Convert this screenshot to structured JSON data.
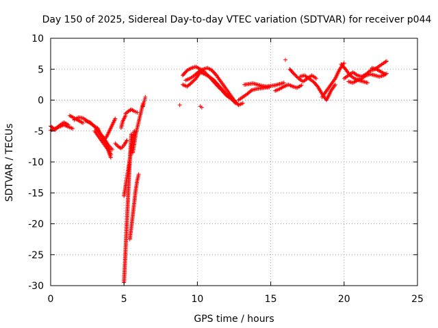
{
  "chart_data": {
    "type": "scatter",
    "title": "Day 150 of 2025, Sidereal Day-to-day VTEC variation (SDTVAR) for receiver p044",
    "xlabel": "GPS time / hours",
    "ylabel": "SDTVAR / TECUs",
    "xlim": [
      0,
      25
    ],
    "ylim": [
      -30,
      10
    ],
    "xticks": [
      0,
      5,
      10,
      15,
      20,
      25
    ],
    "yticks": [
      -30,
      -25,
      -20,
      -15,
      -10,
      -5,
      0,
      5,
      10
    ],
    "xtick_labels": [
      "0",
      "5",
      "10",
      "15",
      "20",
      "25"
    ],
    "ytick_labels": [
      "-30",
      "-25",
      "-20",
      "-15",
      "-10",
      "-5",
      "0",
      "5",
      "10"
    ],
    "grid": true,
    "marker": "+",
    "color": "#ff0000",
    "series": [
      {
        "name": "p044",
        "segments": [
          {
            "x": [
              0.0,
              0.3,
              0.6,
              0.9,
              1.2,
              1.5
            ],
            "y": [
              -4.9,
              -4.6,
              -4.3,
              -4.0,
              -4.3,
              -4.6
            ]
          },
          {
            "x": [
              0.0,
              0.3,
              0.6,
              0.9,
              1.2
            ],
            "y": [
              -4.2,
              -4.8,
              -4.1,
              -3.6,
              -4.0
            ]
          },
          {
            "x": [
              1.3,
              1.6,
              1.9,
              2.2
            ],
            "y": [
              -2.5,
              -2.9,
              -3.3,
              -3.7
            ]
          },
          {
            "x": [
              1.6,
              1.9,
              2.2,
              2.5,
              2.8,
              3.1
            ],
            "y": [
              -3.2,
              -2.8,
              -2.9,
              -3.4,
              -3.9,
              -4.4
            ]
          },
          {
            "x": [
              2.4,
              2.7,
              3.0,
              3.3,
              3.6,
              3.9,
              4.1
            ],
            "y": [
              -3.4,
              -3.6,
              -4.3,
              -5.2,
              -6.3,
              -7.5,
              -8.8
            ]
          },
          {
            "x": [
              3.0,
              3.3,
              3.6,
              3.9,
              4.1
            ],
            "y": [
              -5.0,
              -6.0,
              -7.0,
              -8.0,
              -9.3
            ]
          },
          {
            "x": [
              3.2,
              3.4,
              3.6,
              3.8,
              4.0,
              4.2
            ],
            "y": [
              -4.5,
              -5.5,
              -6.0,
              -6.8,
              -7.5,
              -8.0
            ]
          },
          {
            "x": [
              3.6,
              3.8,
              4.0,
              4.2,
              4.4
            ],
            "y": [
              -6.5,
              -6.0,
              -5.0,
              -4.0,
              -3.0
            ]
          },
          {
            "x": [
              4.4,
              4.6,
              4.8,
              5.0,
              5.2
            ],
            "y": [
              -7.0,
              -7.5,
              -7.8,
              -7.3,
              -6.5
            ]
          },
          {
            "x": [
              4.8,
              4.9,
              5.0,
              5.1
            ],
            "y": [
              -4.5,
              -3.5,
              -3.0,
              -2.5
            ]
          },
          {
            "x": [
              5.1,
              5.3,
              5.5,
              5.7,
              5.9
            ],
            "y": [
              -2.2,
              -1.8,
              -1.5,
              -1.8,
              -2.0
            ]
          },
          {
            "x": [
              5.0,
              5.1,
              5.2,
              5.3,
              5.4,
              5.5,
              5.6,
              5.7
            ],
            "y": [
              -15.5,
              -14.0,
              -12.5,
              -11.0,
              -9.5,
              -8.0,
              -6.5,
              -5.0
            ]
          },
          {
            "x": [
              5.0,
              5.05,
              5.1,
              5.15,
              5.2,
              5.25,
              5.3,
              5.35,
              5.4,
              5.45,
              5.5
            ],
            "y": [
              -29.5,
              -27.0,
              -24.5,
              -22.0,
              -19.5,
              -17.0,
              -14.5,
              -12.0,
              -9.5,
              -7.5,
              -5.5
            ]
          },
          {
            "x": [
              5.4,
              5.5,
              5.6,
              5.7,
              5.8,
              5.9,
              6.0
            ],
            "y": [
              -22.5,
              -20.5,
              -18.5,
              -16.5,
              -14.5,
              -13.0,
              -12.0
            ]
          },
          {
            "x": [
              5.6,
              5.7,
              5.8,
              5.9,
              6.0,
              6.1,
              6.2,
              6.3
            ],
            "y": [
              -8.5,
              -7.0,
              -5.5,
              -4.5,
              -3.5,
              -2.5,
              -1.5,
              -0.5
            ]
          },
          {
            "x": [
              6.3,
              6.35,
              6.4,
              6.45
            ],
            "y": [
              -1.0,
              -0.5,
              0.0,
              0.5
            ]
          },
          {
            "x": [
              8.8
            ],
            "y": [
              -0.8
            ]
          },
          {
            "x": [
              9.0,
              9.3,
              9.6,
              9.9,
              10.2,
              10.5,
              10.8,
              11.1,
              11.4,
              11.7,
              12.0,
              12.3,
              12.6
            ],
            "y": [
              4.0,
              4.8,
              5.2,
              5.4,
              5.0,
              4.5,
              3.8,
              3.0,
              2.2,
              1.5,
              0.7,
              0.2,
              -0.5
            ]
          },
          {
            "x": [
              9.0,
              9.3,
              9.6,
              9.9,
              10.2,
              10.5,
              10.8,
              11.1,
              11.4,
              11.7,
              12.0,
              12.3,
              12.6
            ],
            "y": [
              2.5,
              2.2,
              2.8,
              3.5,
              4.5,
              4.2,
              3.8,
              3.3,
              2.5,
              1.7,
              0.9,
              0.3,
              -0.3
            ]
          },
          {
            "x": [
              9.2,
              9.5,
              9.8,
              10.1,
              10.4,
              10.7,
              11.0,
              11.3,
              11.6,
              11.9,
              12.2,
              12.5,
              12.8,
              13.1
            ],
            "y": [
              3.2,
              3.5,
              4.0,
              4.6,
              5.0,
              5.2,
              4.8,
              4.0,
              3.0,
              2.0,
              1.0,
              0.0,
              -0.8,
              -0.5
            ]
          },
          {
            "x": [
              10.2,
              10.3
            ],
            "y": [
              -1.0,
              -1.2
            ]
          },
          {
            "x": [
              12.8,
              13.1,
              13.4,
              13.7,
              14.0,
              14.3,
              14.6,
              14.9
            ],
            "y": [
              0.0,
              0.5,
              1.0,
              1.6,
              1.8,
              1.9,
              2.0,
              2.1
            ]
          },
          {
            "x": [
              13.2,
              13.5,
              13.8,
              14.1,
              14.4,
              14.7,
              15.0,
              15.3,
              15.6,
              15.9
            ],
            "y": [
              2.5,
              2.6,
              2.7,
              2.5,
              2.3,
              2.2,
              2.3,
              2.4,
              2.6,
              2.8
            ]
          },
          {
            "x": [
              15.3,
              15.6,
              15.9,
              16.2,
              16.5,
              16.8,
              17.1
            ],
            "y": [
              1.5,
              1.8,
              2.2,
              2.5,
              2.2,
              2.0,
              2.4
            ]
          },
          {
            "x": [
              16.0
            ],
            "y": [
              6.5
            ]
          },
          {
            "x": [
              16.3,
              16.6,
              16.9,
              17.2,
              17.5,
              17.8,
              18.1
            ],
            "y": [
              5.0,
              4.2,
              3.5,
              3.0,
              3.5,
              4.0,
              3.5
            ]
          },
          {
            "x": [
              17.0,
              17.3,
              17.6,
              17.9,
              18.2,
              18.5,
              18.8,
              19.1,
              19.4
            ],
            "y": [
              3.8,
              4.0,
              3.5,
              3.0,
              2.2,
              1.0,
              0.0,
              1.5,
              2.5
            ]
          },
          {
            "x": [
              18.5,
              18.8,
              19.1,
              19.4,
              19.7,
              20.0
            ],
            "y": [
              0.5,
              1.5,
              2.5,
              3.5,
              5.0,
              6.0
            ]
          },
          {
            "x": [
              19.8,
              20.1,
              20.4,
              20.7,
              21.0,
              21.3,
              21.6
            ],
            "y": [
              5.8,
              5.0,
              4.0,
              3.5,
              3.2,
              3.0,
              2.8
            ]
          },
          {
            "x": [
              20.0,
              20.3,
              20.6,
              20.9,
              21.2,
              21.5,
              21.8,
              22.1,
              22.4,
              22.7,
              22.9
            ],
            "y": [
              3.5,
              4.0,
              4.5,
              4.0,
              3.8,
              4.2,
              4.8,
              5.0,
              5.5,
              6.0,
              6.3
            ]
          },
          {
            "x": [
              20.3,
              20.6,
              20.9,
              21.2,
              21.5,
              21.8,
              22.1,
              22.4,
              22.7,
              22.9
            ],
            "y": [
              3.0,
              2.8,
              3.2,
              3.5,
              4.0,
              4.2,
              4.0,
              3.8,
              4.0,
              4.3
            ]
          },
          {
            "x": [
              21.9,
              22.2,
              22.5,
              22.8
            ],
            "y": [
              5.2,
              5.0,
              4.6,
              4.2
            ]
          }
        ]
      }
    ]
  }
}
